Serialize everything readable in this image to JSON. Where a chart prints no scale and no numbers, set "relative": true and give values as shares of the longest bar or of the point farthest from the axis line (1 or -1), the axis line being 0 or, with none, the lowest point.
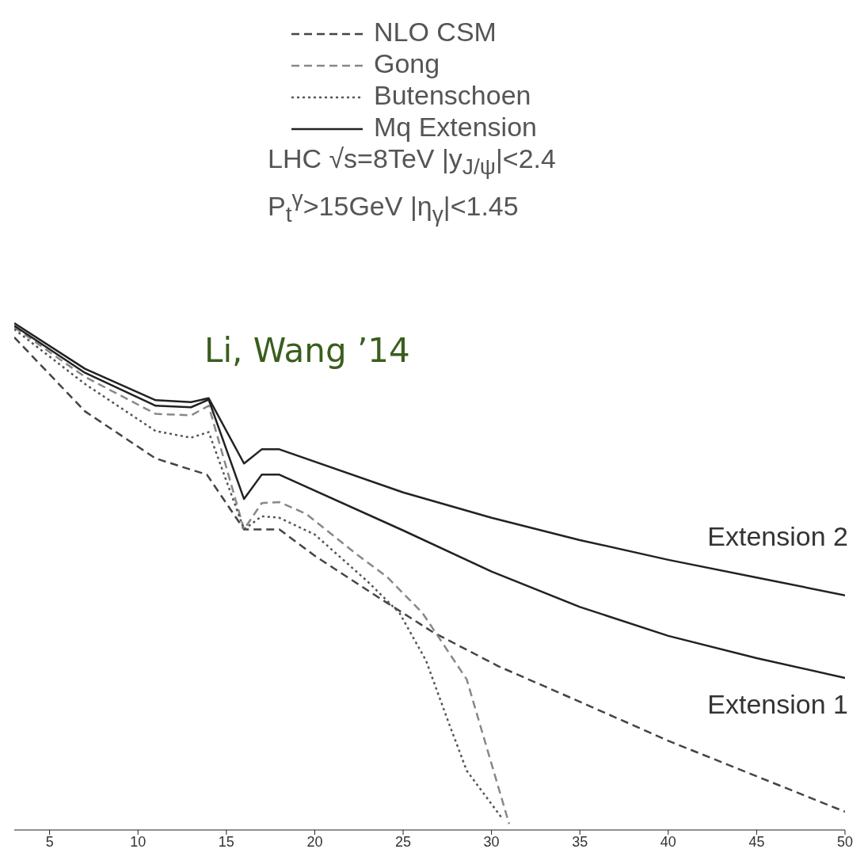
{
  "chart_data": {
    "type": "line",
    "title": "Li, Wang ’14",
    "relative": true,
    "xlim": [
      3,
      50
    ],
    "xticks": [
      5,
      10,
      15,
      20,
      25,
      30,
      35,
      40,
      45,
      50
    ],
    "legend": "top",
    "annotations": [
      "LHC √s=8TeV |y$_{J/ψ}$|<2.4",
      "P$_{t}$$^{γ}$>15GeV |η$_{γ}$|<1.45",
      "Extension 2",
      "Extension 1"
    ],
    "series": [
      {
        "name": "NLO CSM",
        "color": "#444444",
        "line_style": "dashed",
        "x": [
          3,
          7,
          11,
          13.9,
          16,
          17,
          18,
          20,
          23.6,
          26.7,
          30.4,
          35,
          40,
          45,
          50
        ],
        "values": [
          0.972,
          0.826,
          0.733,
          0.701,
          0.593,
          0.593,
          0.593,
          0.541,
          0.459,
          0.39,
          0.323,
          0.253,
          0.176,
          0.106,
          0.036
        ]
      },
      {
        "name": "Gong",
        "color": "#888888",
        "line_style": "dashed",
        "x": [
          3,
          7,
          11,
          13,
          14,
          16,
          17,
          18,
          19.5,
          22.3,
          24.1,
          26.1,
          28.6,
          31
        ],
        "values": [
          0.992,
          0.894,
          0.821,
          0.818,
          0.837,
          0.593,
          0.645,
          0.647,
          0.624,
          0.546,
          0.499,
          0.428,
          0.297,
          0.012
        ]
      },
      {
        "name": "Butenschoen",
        "color": "#555555",
        "line_style": "dotted",
        "x": [
          3,
          7,
          11,
          13,
          14,
          16,
          17,
          18,
          20,
          23,
          24.8,
          26.3,
          27.5,
          28.6,
          30.6
        ],
        "values": [
          0.988,
          0.88,
          0.787,
          0.774,
          0.785,
          0.593,
          0.619,
          0.616,
          0.583,
          0.49,
          0.428,
          0.334,
          0.219,
          0.117,
          0.023
        ]
      },
      {
        "name": "Mq Extension",
        "color": "#222222",
        "line_style": "solid",
        "x": [
          3,
          7,
          11,
          13,
          14,
          16,
          17,
          18,
          25,
          30,
          35,
          40,
          45,
          50
        ],
        "values": [
          1,
          0.91,
          0.848,
          0.844,
          0.852,
          0.723,
          0.751,
          0.751,
          0.666,
          0.616,
          0.572,
          0.533,
          0.498,
          0.463
        ]
      },
      {
        "color": "#222222",
        "line_style": "solid",
        "x": [
          3,
          7,
          11,
          13,
          14,
          16,
          17,
          18,
          25,
          30,
          35,
          40,
          45,
          50
        ],
        "values": [
          0.995,
          0.902,
          0.837,
          0.834,
          0.849,
          0.653,
          0.701,
          0.701,
          0.591,
          0.51,
          0.44,
          0.383,
          0.339,
          0.3
        ]
      }
    ]
  }
}
